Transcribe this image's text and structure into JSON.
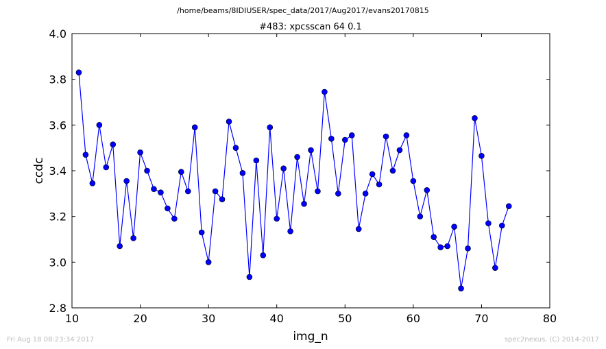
{
  "suptitle": "/home/beams/8IDIUSER/spec_data/2017/Aug2017/evans20170815",
  "footer_left": "Fri Aug 18 08:23:34 2017",
  "footer_right": "spec2nexus, (C) 2014-2017",
  "colors": {
    "series": "#0000ff",
    "frame": "#000000"
  },
  "chart_data": {
    "type": "line",
    "title": "#483: xpcsscan 64 0.1",
    "xlabel": "img_n",
    "ylabel": "ccdc",
    "xlim": [
      10,
      80
    ],
    "ylim": [
      2.8,
      4.0
    ],
    "xticks": [
      10,
      20,
      30,
      40,
      50,
      60,
      70,
      80
    ],
    "yticks": [
      2.8,
      3.0,
      3.2,
      3.4,
      3.6,
      3.8,
      4.0
    ],
    "grid": false,
    "legend": "none",
    "series": [
      {
        "marker": "circle",
        "x": [
          11,
          12,
          13,
          14,
          15,
          16,
          17,
          18,
          19,
          20,
          21,
          22,
          23,
          24,
          25,
          26,
          27,
          28,
          29,
          30,
          31,
          32,
          33,
          34,
          35,
          36,
          37,
          38,
          39,
          40,
          41,
          42,
          43,
          44,
          45,
          46,
          47,
          48,
          49,
          50,
          51,
          52,
          53,
          54,
          55,
          56,
          57,
          58,
          59,
          60,
          61,
          62,
          63,
          64,
          65,
          66,
          67,
          68,
          69,
          70,
          71,
          72,
          73,
          74
        ],
        "y": [
          3.83,
          3.47,
          3.345,
          3.6,
          3.415,
          3.515,
          3.07,
          3.355,
          3.105,
          3.48,
          3.4,
          3.32,
          3.305,
          3.235,
          3.19,
          3.395,
          3.31,
          3.59,
          3.13,
          3.0,
          3.31,
          3.275,
          3.615,
          3.5,
          3.39,
          2.935,
          3.445,
          3.03,
          3.59,
          3.19,
          3.41,
          3.135,
          3.46,
          3.255,
          3.49,
          3.31,
          3.745,
          3.54,
          3.3,
          3.535,
          3.555,
          3.145,
          3.3,
          3.385,
          3.34,
          3.55,
          3.4,
          3.49,
          3.555,
          3.355,
          3.2,
          3.315,
          3.11,
          3.065,
          3.07,
          3.155,
          2.885,
          3.06,
          3.63,
          3.465,
          3.17,
          2.975,
          3.16,
          3.245
        ]
      }
    ]
  }
}
